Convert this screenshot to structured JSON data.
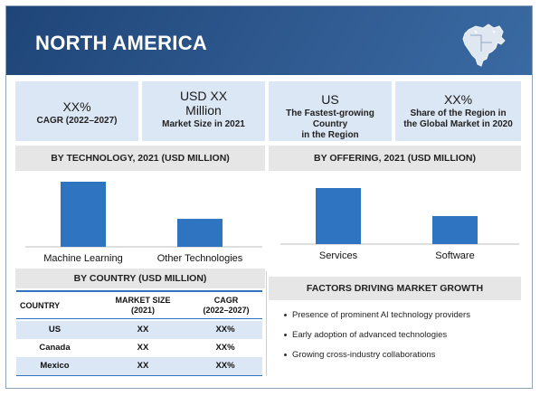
{
  "header": {
    "title": "NORTH AMERICA"
  },
  "kpis": [
    {
      "value": "XX%",
      "label": "CAGR (2022–2027)"
    },
    {
      "value": "USD XX Million",
      "value_line1": "USD XX",
      "value_line2": "Million",
      "label": "Market Size in 2021"
    },
    {
      "value": "US",
      "label_line1": "The Fastest-growing Country",
      "label_line2": "in the Region"
    },
    {
      "value": "XX%",
      "label_line1": "Share of the Region in",
      "label_line2": "the Global Market in 2020"
    }
  ],
  "sections": {
    "technology": "BY TECHNOLOGY, 2021 (USD MILLION)",
    "offering": "BY OFFERING, 2021 (USD MILLION)",
    "country": "BY COUNTRY (USD MILLION)",
    "factors": "FACTORS DRIVING MARKET GROWTH"
  },
  "chart_data": [
    {
      "type": "bar",
      "title": "BY TECHNOLOGY, 2021 (USD MILLION)",
      "categories": [
        "Machine Learning",
        "Other Technologies"
      ],
      "values": [
        100,
        43
      ],
      "ylim": [
        0,
        100
      ],
      "color": "#2e74c0"
    },
    {
      "type": "bar",
      "title": "BY OFFERING, 2021 (USD MILLION)",
      "categories": [
        "Services",
        "Software"
      ],
      "values": [
        100,
        50
      ],
      "ylim": [
        0,
        100
      ],
      "color": "#2e74c0"
    }
  ],
  "country_table": {
    "headers": [
      "COUNTRY",
      "MARKET SIZE (2021)",
      "CAGR (2022–2027)"
    ],
    "header_lines": [
      [
        "COUNTRY"
      ],
      [
        "MARKET SIZE",
        "(2021)"
      ],
      [
        "CAGR",
        "(2022–2027)"
      ]
    ],
    "rows": [
      [
        "US",
        "XX",
        "XX%"
      ],
      [
        "Canada",
        "XX",
        "XX%"
      ],
      [
        "Mexico",
        "XX",
        "XX%"
      ]
    ]
  },
  "factors": [
    "Presence of prominent AI technology providers",
    "Early adoption of advanced technologies",
    "Growing cross-industry collaborations"
  ],
  "colors": {
    "header": "#2c5282",
    "kpi_bg": "#dbe7f4",
    "bar": "#2e74c0",
    "section_bg": "#e6e6e6",
    "table_line": "#2e74c0"
  }
}
